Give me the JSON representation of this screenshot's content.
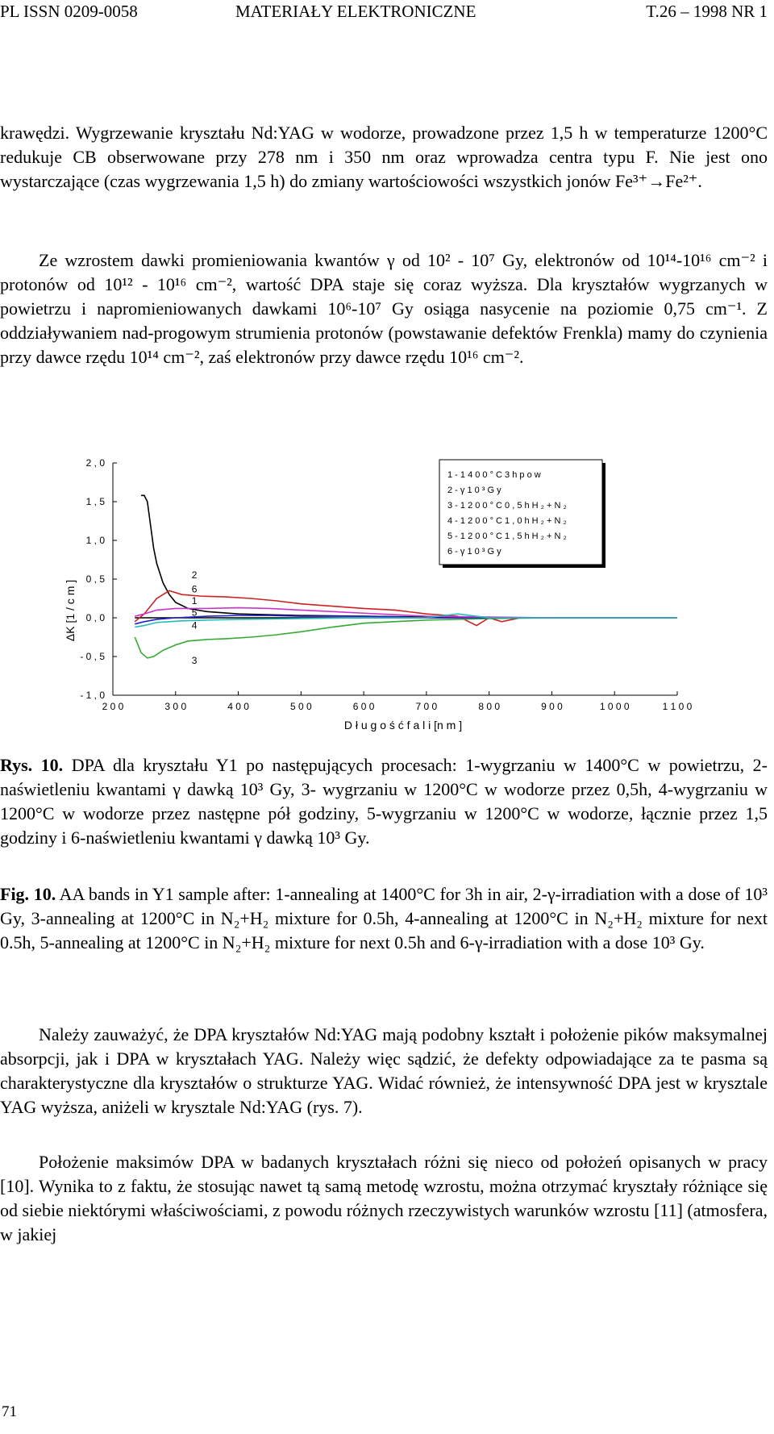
{
  "header": {
    "left": "PL ISSN 0209-0058",
    "center": "MATERIAŁY ELEKTRONICZNE",
    "right": "T.26 – 1998 NR 1"
  },
  "intro": {
    "p1": "krawędzi. Wygrzewanie kryształu Nd:YAG w wodorze, prowadzone przez 1,5 h w temperaturze 1200°C redukuje CB obserwowane przy 278 nm i 350 nm oraz wprowadza centra typu F. Nie jest ono wystarczające (czas wygrzewania 1,5 h) do zmiany wartościowości wszystkich jonów Fe³⁺→Fe²⁺.",
    "p2": "Ze wzrostem dawki promieniowania kwantów γ od 10² - 10⁷ Gy, elektronów od 10¹⁴-10¹⁶ cm⁻² i protonów od 10¹² - 10¹⁶ cm⁻², wartość DPA staje się coraz wyższa. Dla kryształów wygrzanych w powietrzu i napromieniowanych dawkami 10⁶-10⁷ Gy osiąga nasycenie na poziomie 0,75 cm⁻¹. Z oddziaływaniem nad-progowym strumienia protonów (powstawanie defektów Frenkla) mamy do czynienia przy dawce rzędu 10¹⁴ cm⁻², zaś elektronów przy dawce rzędu 10¹⁶ cm⁻²."
  },
  "chart_data": {
    "type": "line",
    "xlabel": "D ł u g o ś ć   f a l i   [n m ]",
    "ylabel": "ΔK  [1 / c m ]",
    "xlim": [
      200,
      1100
    ],
    "ylim": [
      -1.0,
      2.0
    ],
    "x_ticks": [
      "2 0 0",
      "3 0 0",
      "4 0 0",
      "5 0 0",
      "6 0 0",
      "7 0 0",
      "8 0 0",
      "9 0 0",
      "1 0 0 0",
      "1 1 0 0"
    ],
    "y_ticks": [
      "2 , 0",
      "1 , 5",
      "1 , 0",
      "0 , 5",
      "0 , 0",
      "- 0 , 5",
      "- 1 , 0"
    ],
    "legend": [
      "1 - 1 4 0 0 ° C   3 h   p o w",
      "2 - γ  1 0 ³  G y",
      "3 - 1 2 0 0 ° C   0 , 5 h   H ₂ + N ₂",
      "4 - 1 2 0 0 ° C   1 , 0 h   H ₂ + N ₂",
      "5 - 1 2 0 0 ° C   1 , 5 h   H ₂ + N ₂",
      "6 - γ  1 0 ³  G y"
    ],
    "legend_position": "top-right",
    "curve_labels": [
      "2",
      "6",
      "1",
      "5",
      "4",
      "3"
    ],
    "series": [
      {
        "color": "#000000",
        "x": [
          245,
          250,
          255,
          260,
          265,
          270,
          280,
          290,
          300,
          320,
          350,
          400,
          500,
          600,
          700,
          800,
          900,
          1000,
          1100
        ],
        "y": [
          1.58,
          1.58,
          1.5,
          1.2,
          0.9,
          0.7,
          0.45,
          0.3,
          0.2,
          0.12,
          0.08,
          0.05,
          0.03,
          0.02,
          0.01,
          0.0,
          0.0,
          0.0,
          0.0
        ]
      },
      {
        "color": "#cc2222",
        "x": [
          235,
          250,
          270,
          290,
          310,
          340,
          380,
          420,
          460,
          500,
          550,
          600,
          650,
          700,
          750,
          780,
          800,
          820,
          850,
          900,
          1000,
          1100
        ],
        "y": [
          -0.05,
          0.05,
          0.25,
          0.35,
          0.3,
          0.28,
          0.27,
          0.25,
          0.22,
          0.18,
          0.15,
          0.12,
          0.1,
          0.05,
          0.02,
          -0.1,
          0.0,
          -0.05,
          0.0,
          0.0,
          0.0,
          0.0
        ]
      },
      {
        "color": "#33aa33",
        "x": [
          235,
          245,
          255,
          265,
          280,
          300,
          320,
          350,
          380,
          420,
          460,
          500,
          550,
          600,
          700,
          800,
          900,
          1000,
          1100
        ],
        "y": [
          -0.25,
          -0.45,
          -0.52,
          -0.5,
          -0.42,
          -0.35,
          -0.3,
          -0.28,
          -0.27,
          -0.25,
          -0.22,
          -0.18,
          -0.12,
          -0.07,
          -0.03,
          -0.01,
          0.0,
          0.0,
          0.0
        ]
      },
      {
        "color": "#2222cc",
        "x": [
          235,
          250,
          270,
          300,
          350,
          400,
          450,
          500,
          550,
          600,
          650,
          700,
          800,
          900,
          1000,
          1100
        ],
        "y": [
          -0.08,
          -0.05,
          -0.02,
          0.0,
          0.02,
          0.03,
          0.03,
          0.02,
          0.02,
          0.02,
          0.01,
          0.0,
          0.0,
          0.0,
          0.0,
          0.0
        ]
      },
      {
        "color": "#cc33cc",
        "x": [
          235,
          250,
          270,
          300,
          350,
          400,
          450,
          500,
          550,
          600,
          650,
          700,
          800,
          900,
          1000,
          1100
        ],
        "y": [
          0.02,
          0.05,
          0.1,
          0.12,
          0.12,
          0.13,
          0.12,
          0.1,
          0.08,
          0.06,
          0.04,
          0.02,
          0.01,
          0.0,
          0.0,
          0.0
        ]
      },
      {
        "color": "#22bbbb",
        "x": [
          235,
          250,
          270,
          290,
          310,
          350,
          400,
          500,
          600,
          700,
          750,
          800,
          900,
          1000,
          1100
        ],
        "y": [
          -0.12,
          -0.1,
          -0.06,
          -0.05,
          -0.04,
          -0.03,
          -0.02,
          -0.01,
          0.0,
          0.0,
          0.05,
          0.0,
          0.0,
          0.0,
          0.0
        ]
      }
    ]
  },
  "caption": {
    "pl_label": "Rys. 10.",
    "pl_text": "DPA dla kryształu Y1 po następujących procesach: 1-wygrzaniu w 1400°C w powietrzu, 2- naświetleniu kwantami γ dawką 10³ Gy, 3- wygrzaniu w 1200°C w wodorze przez 0,5h, 4-wygrzaniu w 1200°C w wodorze przez następne pół godziny, 5-wygrzaniu w 1200°C w wodorze, łącznie przez 1,5 godziny i 6-naświetleniu kwantami γ dawką 10³ Gy.",
    "en_label": "Fig. 10.",
    "en_text": "AA bands in Y1 sample after: 1-annealing at 1400°C for 3h in air, 2-γ-irradiation with a dose of 10³ Gy, 3-annealing at 1200°C in N₂+H₂ mixture for 0.5h, 4-annealing at 1200°C in N₂+H₂ mixture for next 0.5h, 5-annealing at 1200°C in N₂+H₂ mixture for next 0.5h and 6-γ-irradiation with a dose 10³ Gy."
  },
  "body": {
    "p3": "Należy zauważyć, że DPA kryształów Nd:YAG mają podobny kształt i położenie pików maksymalnej absorpcji, jak i DPA w kryształach YAG. Należy więc sądzić, że defekty odpowiadające za te pasma są charakterystyczne dla kryształów o strukturze YAG. Widać również, że intensywność DPA jest w krysztale YAG wyższa, aniżeli w krysztale Nd:YAG (rys. 7).",
    "p4": "Położenie maksimów DPA w badanych kryształach różni się nieco od położeń opisanych w pracy [10]. Wynika to z faktu, że stosując nawet tą samą metodę wzrostu, można otrzymać kryształy różniące się od siebie niektórymi właściwościami, z powodu różnych rzeczywistych warunków wzrostu [11] (atmosfera, w jakiej"
  },
  "page_number": "71"
}
